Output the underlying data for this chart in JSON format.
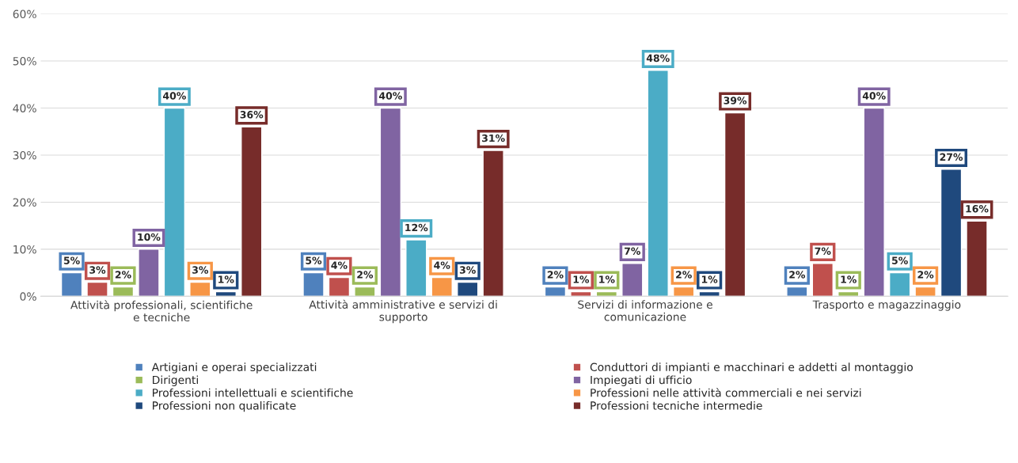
{
  "chart_data": {
    "type": "bar",
    "categories": [
      "Attività professionali, scientifiche e tecniche",
      "Attività amministrative e servizi di supporto",
      "Servizi di informazione e comunicazione",
      "Trasporto e magazzinaggio"
    ],
    "series": [
      {
        "name": "Artigiani e operai specializzati",
        "color": "#4f81bd",
        "values": [
          5,
          5,
          2,
          2
        ],
        "value_labels": [
          "5%",
          "5%",
          "2%",
          "2%"
        ]
      },
      {
        "name": "Conduttori di impianti e macchinari e addetti al montaggio",
        "color": "#c0504d",
        "values": [
          3,
          4,
          1,
          7
        ],
        "value_labels": [
          "3%",
          "4%",
          "1%",
          "7%"
        ]
      },
      {
        "name": "Dirigenti",
        "color": "#9bbb59",
        "values": [
          2,
          2,
          1,
          1
        ],
        "value_labels": [
          "2%",
          "2%",
          "1%",
          "1%"
        ]
      },
      {
        "name": "Impiegati di ufficio",
        "color": "#8064a2",
        "values": [
          10,
          40,
          7,
          40
        ],
        "value_labels": [
          "10%",
          "40%",
          "7%",
          "40%"
        ]
      },
      {
        "name": "Professioni intellettuali e scientifiche",
        "color": "#4bacc6",
        "values": [
          40,
          12,
          48,
          5
        ],
        "value_labels": [
          "40%",
          "12%",
          "48%",
          "5%"
        ]
      },
      {
        "name": "Professioni nelle attività commerciali e nei servizi",
        "color": "#f79646",
        "values": [
          3,
          4,
          2,
          2
        ],
        "value_labels": [
          "3%",
          "4%",
          "2%",
          "2%"
        ]
      },
      {
        "name": "Professioni non qualificate",
        "color": "#1f497d",
        "values": [
          1,
          3,
          1,
          27
        ],
        "value_labels": [
          "1%",
          "3%",
          "1%",
          "27%"
        ]
      },
      {
        "name": "Professioni tecniche intermedie",
        "color": "#772c2a",
        "values": [
          36,
          31,
          39,
          16
        ],
        "value_labels": [
          "36%",
          "31%",
          "39%",
          "16%"
        ]
      }
    ],
    "ylim": [
      0,
      60
    ],
    "yticks": [
      {
        "value": 0,
        "label": "0%"
      },
      {
        "value": 10,
        "label": "10%"
      },
      {
        "value": 20,
        "label": "20%"
      },
      {
        "value": 30,
        "label": "30%"
      },
      {
        "value": 40,
        "label": "40%"
      },
      {
        "value": 50,
        "label": "50%"
      },
      {
        "value": 60,
        "label": "60%"
      }
    ],
    "grid": "y",
    "legend": "bottom"
  }
}
